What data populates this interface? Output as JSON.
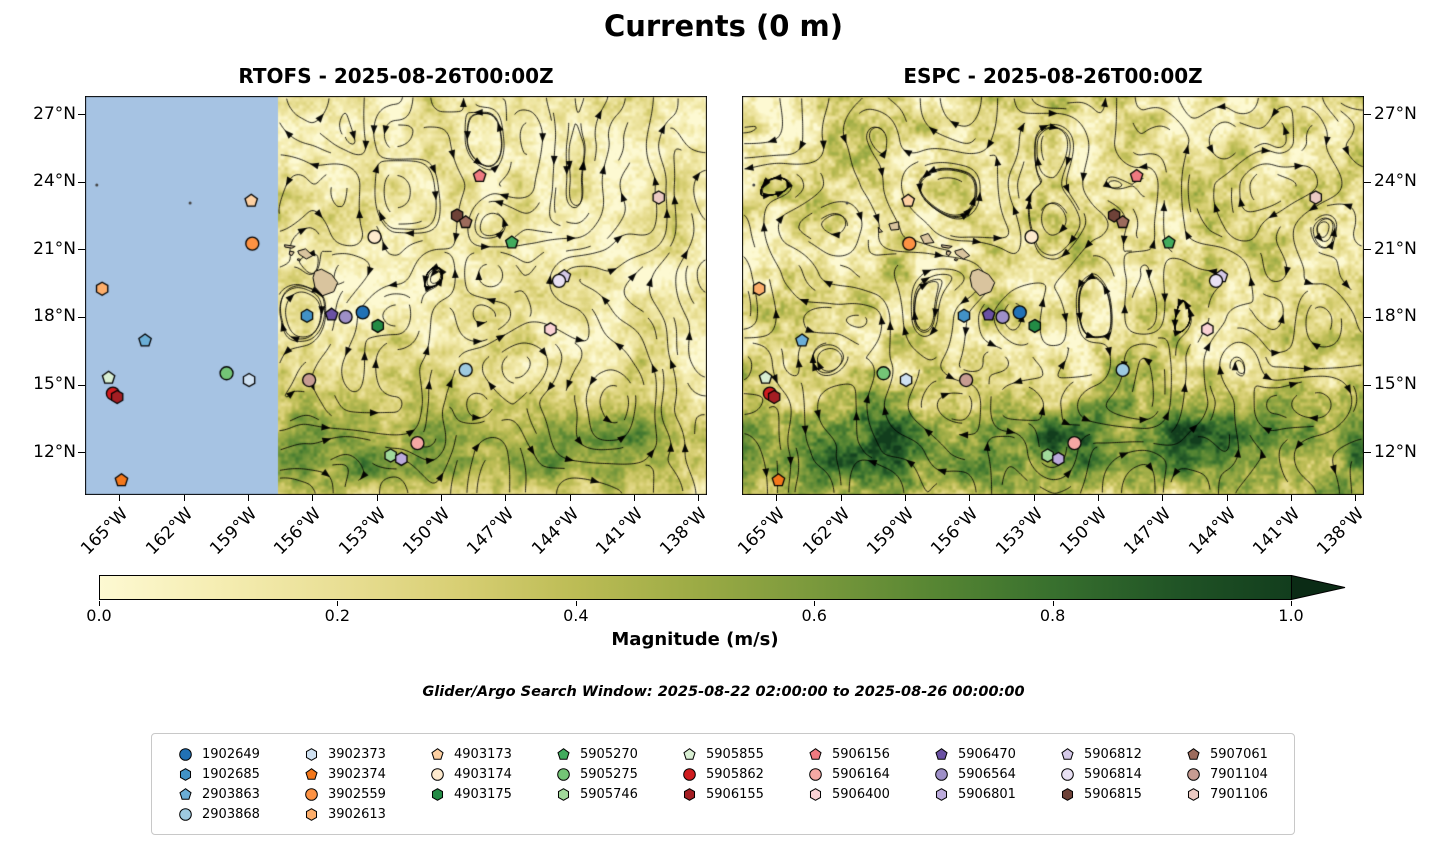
{
  "chart_data": {
    "type": "heatmap",
    "description": "Two-panel ocean surface current comparison: magnitude heatmap with streamlines, glider/Argo float markers, shared colorbar and legend",
    "title": "Currents (0 m)",
    "panels": [
      {
        "id": "rtofs",
        "title": "RTOFS - 2025-08-26T00:00Z",
        "no_data_region": {
          "lon_max": -157.6,
          "color": "#a6c3e3"
        }
      },
      {
        "id": "espc",
        "title": "ESPC - 2025-08-26T00:00Z",
        "no_data_region": null
      }
    ],
    "axes": {
      "lon_range": [
        -166.6,
        -137.6
      ],
      "lat_range": [
        10.1,
        27.8
      ],
      "lon_ticks": [
        {
          "value": -165,
          "label": "165°W"
        },
        {
          "value": -162,
          "label": "162°W"
        },
        {
          "value": -159,
          "label": "159°W"
        },
        {
          "value": -156,
          "label": "156°W"
        },
        {
          "value": -153,
          "label": "153°W"
        },
        {
          "value": -150,
          "label": "150°W"
        },
        {
          "value": -147,
          "label": "147°W"
        },
        {
          "value": -144,
          "label": "144°W"
        },
        {
          "value": -141,
          "label": "141°W"
        },
        {
          "value": -138,
          "label": "138°W"
        }
      ],
      "lat_ticks": [
        {
          "value": 27,
          "label": "27°N"
        },
        {
          "value": 24,
          "label": "24°N"
        },
        {
          "value": 21,
          "label": "21°N"
        },
        {
          "value": 18,
          "label": "18°N"
        },
        {
          "value": 15,
          "label": "15°N"
        },
        {
          "value": 12,
          "label": "12°N"
        }
      ]
    },
    "colorbar": {
      "label": "Magnitude (m/s)",
      "range": [
        0,
        1
      ],
      "extend_max": true,
      "extend_color": "#0b2b15",
      "ticks": [
        {
          "value": 0.0,
          "label": "0.0"
        },
        {
          "value": 0.2,
          "label": "0.2"
        },
        {
          "value": 0.4,
          "label": "0.4"
        },
        {
          "value": 0.6,
          "label": "0.6"
        },
        {
          "value": 0.8,
          "label": "0.8"
        },
        {
          "value": 1.0,
          "label": "1.0"
        }
      ],
      "gradient": [
        [
          0.0,
          "#fdf9d2"
        ],
        [
          0.1,
          "#f5edb2"
        ],
        [
          0.2,
          "#e9df95"
        ],
        [
          0.3,
          "#d8cf74"
        ],
        [
          0.4,
          "#bcbc55"
        ],
        [
          0.5,
          "#9cab45"
        ],
        [
          0.6,
          "#7a993c"
        ],
        [
          0.7,
          "#578633"
        ],
        [
          0.8,
          "#38702e"
        ],
        [
          0.9,
          "#215526"
        ],
        [
          1.0,
          "#123d1d"
        ]
      ]
    },
    "search_window": "Glider/Argo Search Window: 2025-08-22 02:00:00 to 2025-08-26 00:00:00",
    "floats": [
      {
        "id": "1902649",
        "shape": "circle",
        "color": "#2171b5",
        "lon": -153.65,
        "lat": 18.2
      },
      {
        "id": "1902685",
        "shape": "hexagon",
        "color": "#4292c6",
        "lon": -156.25,
        "lat": 18.05
      },
      {
        "id": "2903863",
        "shape": "pentagon",
        "color": "#6baed6",
        "lon": -163.8,
        "lat": 16.95
      },
      {
        "id": "2903868",
        "shape": "circle",
        "color": "#9ecae1",
        "lon": -148.85,
        "lat": 15.65
      },
      {
        "id": "3902373",
        "shape": "hexagon",
        "color": "#cfe1f2",
        "lon": -158.95,
        "lat": 15.2
      },
      {
        "id": "3902374",
        "shape": "pentagon",
        "color": "#f3771b",
        "lon": -164.9,
        "lat": 10.75
      },
      {
        "id": "3902559",
        "shape": "circle",
        "color": "#fd9243",
        "lon": -158.8,
        "lat": 21.25
      },
      {
        "id": "3902613",
        "shape": "hexagon",
        "color": "#fdae6b",
        "lon": -165.8,
        "lat": 19.25
      },
      {
        "id": "4903173",
        "shape": "pentagon",
        "color": "#fdd0a2",
        "lon": -158.85,
        "lat": 23.15
      },
      {
        "id": "4903174",
        "shape": "circle",
        "color": "#feeace",
        "lon": -153.1,
        "lat": 21.55
      },
      {
        "id": "4903175",
        "shape": "hexagon",
        "color": "#238b45",
        "lon": -152.95,
        "lat": 17.6
      },
      {
        "id": "5905270",
        "shape": "pentagon",
        "color": "#41ab5d",
        "lon": -146.7,
        "lat": 21.3
      },
      {
        "id": "5905275",
        "shape": "circle",
        "color": "#74c476",
        "lon": -160.0,
        "lat": 15.5
      },
      {
        "id": "5905746",
        "shape": "hexagon",
        "color": "#a1d99b",
        "lon": -152.35,
        "lat": 11.85
      },
      {
        "id": "5905855",
        "shape": "pentagon",
        "color": "#d9efd3",
        "lon": -165.5,
        "lat": 15.3
      },
      {
        "id": "5905862",
        "shape": "circle",
        "color": "#cf1c1f",
        "lon": -165.3,
        "lat": 14.6
      },
      {
        "id": "5906155",
        "shape": "hexagon",
        "color": "#a41e23",
        "lon": -165.1,
        "lat": 14.45
      },
      {
        "id": "5906156",
        "shape": "pentagon",
        "color": "#ef7a80",
        "lon": -148.2,
        "lat": 24.25
      },
      {
        "id": "5906164",
        "shape": "circle",
        "color": "#f5a8a4",
        "lon": -151.1,
        "lat": 12.4
      },
      {
        "id": "5906400",
        "shape": "hexagon",
        "color": "#fad2d5",
        "lon": -144.9,
        "lat": 17.45
      },
      {
        "id": "5906470",
        "shape": "pentagon",
        "color": "#6a51a3",
        "lon": -155.1,
        "lat": 18.1
      },
      {
        "id": "5906564",
        "shape": "circle",
        "color": "#9e8fc8",
        "lon": -154.45,
        "lat": 18.0
      },
      {
        "id": "5906801",
        "shape": "hexagon",
        "color": "#bcabdc",
        "lon": -151.85,
        "lat": 11.7
      },
      {
        "id": "5906812",
        "shape": "pentagon",
        "color": "#d5c9e8",
        "lon": -144.25,
        "lat": 19.8
      },
      {
        "id": "5906814",
        "shape": "circle",
        "color": "#e9e1f4",
        "lon": -144.5,
        "lat": 19.6
      },
      {
        "id": "5906815",
        "shape": "hexagon",
        "color": "#6e4238",
        "lon": -149.25,
        "lat": 22.5
      },
      {
        "id": "5907061",
        "shape": "pentagon",
        "color": "#9c6b5c",
        "lon": -148.85,
        "lat": 22.2
      },
      {
        "id": "7901104",
        "shape": "circle",
        "color": "#c79c92",
        "lon": -156.15,
        "lat": 15.2
      },
      {
        "id": "7901106",
        "shape": "hexagon",
        "color": "#eccac3",
        "lon": -139.85,
        "lat": 23.3
      }
    ],
    "legend_columns": [
      [
        "1902649",
        "1902685",
        "2903863",
        "2903868"
      ],
      [
        "3902373",
        "3902374",
        "3902559",
        "3902613"
      ],
      [
        "4903173",
        "4903174",
        "4903175"
      ],
      [
        "5905270",
        "5905275",
        "5905746"
      ],
      [
        "5905855",
        "5905862",
        "5906155"
      ],
      [
        "5906156",
        "5906164",
        "5906400"
      ],
      [
        "5906470",
        "5906564",
        "5906801"
      ],
      [
        "5906812",
        "5906814",
        "5906815"
      ],
      [
        "5907061",
        "7901104",
        "7901106"
      ]
    ],
    "islands": {
      "color": "#d9c49e",
      "polygons": [
        [
          [
            -155.88,
            20.02
          ],
          [
            -155.58,
            20.12
          ],
          [
            -155.1,
            19.88
          ],
          [
            -154.82,
            19.52
          ],
          [
            -155.0,
            19.12
          ],
          [
            -155.52,
            18.94
          ],
          [
            -155.88,
            19.32
          ],
          [
            -155.97,
            19.74
          ]
        ],
        [
          [
            -156.68,
            20.92
          ],
          [
            -156.32,
            21.02
          ],
          [
            -155.98,
            20.72
          ],
          [
            -156.28,
            20.57
          ],
          [
            -156.62,
            20.78
          ]
        ],
        [
          [
            -157.3,
            21.2
          ],
          [
            -156.8,
            21.13
          ],
          [
            -156.95,
            21.05
          ],
          [
            -157.28,
            21.1
          ]
        ],
        [
          [
            -157.05,
            20.92
          ],
          [
            -156.85,
            20.88
          ],
          [
            -156.95,
            20.72
          ],
          [
            -157.08,
            20.78
          ]
        ],
        [
          [
            -156.68,
            20.58
          ],
          [
            -156.54,
            20.55
          ],
          [
            -156.6,
            20.48
          ],
          [
            -156.7,
            20.52
          ]
        ],
        [
          [
            -158.28,
            21.58
          ],
          [
            -157.92,
            21.7
          ],
          [
            -157.65,
            21.3
          ],
          [
            -158.1,
            21.25
          ]
        ],
        [
          [
            -159.75,
            22.12
          ],
          [
            -159.3,
            22.22
          ],
          [
            -159.28,
            21.88
          ],
          [
            -159.65,
            21.85
          ]
        ],
        [
          [
            -160.25,
            21.98
          ],
          [
            -160.05,
            21.78
          ],
          [
            -160.22,
            21.75
          ]
        ]
      ],
      "islets": [
        [
          -166.05,
          23.85
        ],
        [
          -161.7,
          23.05
        ]
      ]
    }
  }
}
